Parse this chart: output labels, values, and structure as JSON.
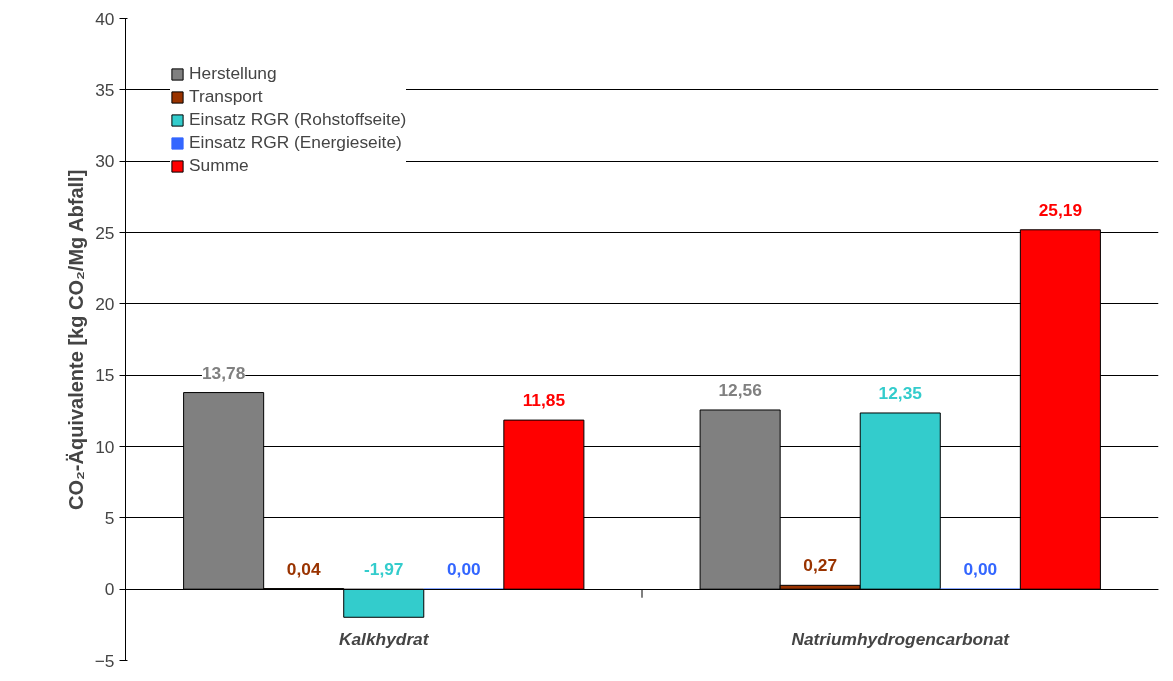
{
  "chart_data": {
    "type": "bar",
    "ylabel": "CO₂-Äquivalente [kg CO₂/Mg Abfall]",
    "categories": [
      "Kalkhydrat",
      "Natriumhydrogencarbonat"
    ],
    "series": [
      {
        "name": "Herstellung",
        "color": "#808080",
        "values": [
          13.78,
          12.56
        ],
        "value_labels": [
          "13,78",
          "12,56"
        ]
      },
      {
        "name": "Transport",
        "color": "#993300",
        "values": [
          0.04,
          0.27
        ],
        "value_labels": [
          "0,04",
          "0,27"
        ]
      },
      {
        "name": "Einsatz RGR (Rohstoffseite)",
        "color": "#33cccc",
        "values": [
          -1.97,
          12.35
        ],
        "value_labels": [
          "-1,97",
          "12,35"
        ]
      },
      {
        "name": "Einsatz RGR (Energieseite)",
        "color": "#3366ff",
        "values": [
          0.0,
          0.0
        ],
        "value_labels": [
          "0,00",
          "0,00"
        ]
      },
      {
        "name": "Summe",
        "color": "#ff0000",
        "values": [
          11.85,
          25.19
        ],
        "value_labels": [
          "11,85",
          "25,19"
        ]
      }
    ],
    "ylim": [
      -5,
      40
    ],
    "yticks": [
      -5,
      0,
      5,
      10,
      15,
      20,
      25,
      30,
      35,
      40
    ],
    "grid": "y",
    "legend": "top left"
  }
}
